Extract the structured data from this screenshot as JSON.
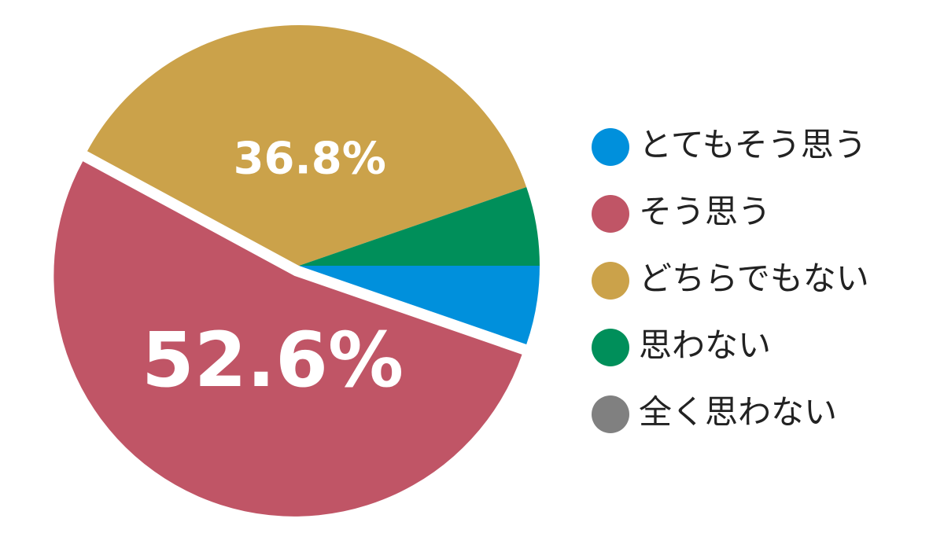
{
  "chart_data": {
    "type": "pie",
    "categories": [
      "とてもそう思う",
      "そう思う",
      "どちらでもない",
      "思わない",
      "全く思わない"
    ],
    "values": [
      5.3,
      52.6,
      36.8,
      5.3,
      0
    ],
    "value_labels": [
      null,
      "52.6%",
      "36.8%",
      null,
      null
    ],
    "colors": [
      "#0090dc",
      "#c05566",
      "#cba24a",
      "#008f5a",
      "#808080"
    ],
    "legend": "right"
  }
}
